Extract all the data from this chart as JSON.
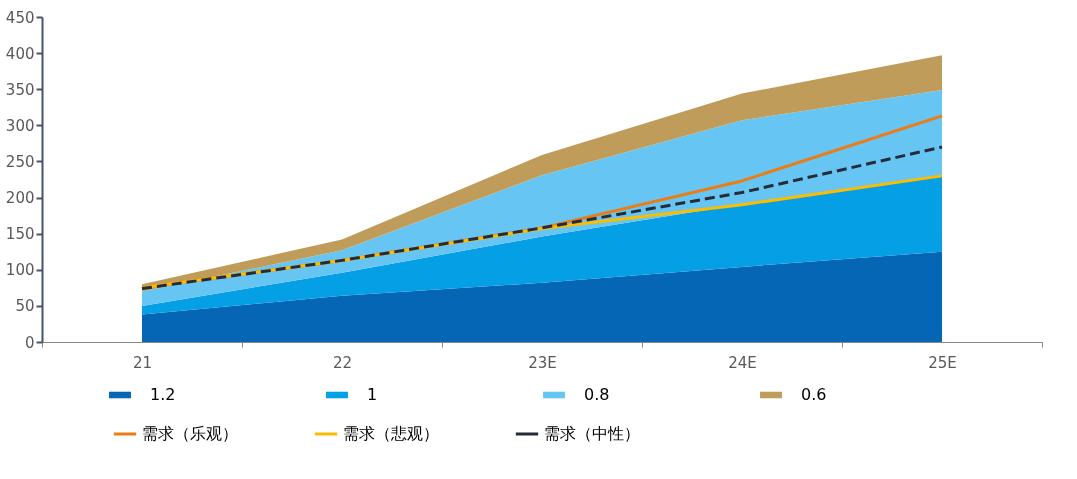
{
  "chart_data": {
    "type": "area",
    "stacked": true,
    "categories": [
      "21",
      "22",
      "23E",
      "24E",
      "25E"
    ],
    "ylim": [
      0,
      450
    ],
    "yticks": [
      0,
      50,
      100,
      150,
      200,
      250,
      300,
      350,
      400,
      450
    ],
    "grid": false,
    "legend": "bottom",
    "series": [
      {
        "name": "1.2",
        "color": "#0466b4",
        "values": [
          38,
          64,
          82,
          104,
          125
        ]
      },
      {
        "name": "1",
        "color": "#049fe4",
        "values": [
          12,
          32,
          64,
          87,
          105
        ]
      },
      {
        "name": "0.8",
        "color": "#67c5f4",
        "values": [
          20,
          31,
          85,
          116,
          119
        ]
      },
      {
        "name": "0.6",
        "color": "#c09c5a",
        "values": [
          10,
          15,
          28,
          37,
          48
        ]
      },
      {
        "name": "需求（乐观）",
        "type": "line",
        "color": "#ec7c14",
        "line_style": "solid",
        "values": [
          75,
          113,
          158,
          223,
          313
        ]
      },
      {
        "name": "需求（悲观）",
        "type": "line",
        "color": "#fbbc04",
        "line_style": "solid",
        "values": [
          75,
          113,
          157,
          190,
          230
        ]
      },
      {
        "name": "需求（中性）",
        "type": "line",
        "color": "#252c38",
        "line_style": "dashed",
        "values": [
          74,
          113,
          158,
          207,
          270
        ]
      }
    ]
  }
}
